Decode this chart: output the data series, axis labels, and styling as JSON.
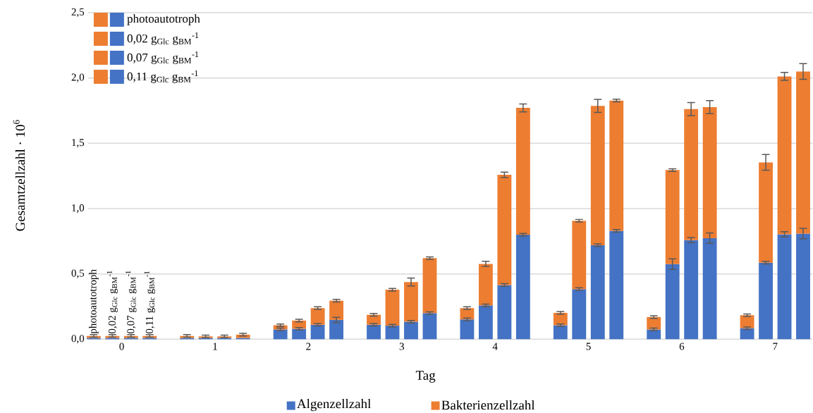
{
  "chart_data": {
    "type": "bar",
    "stacked": true,
    "xlabel": "Tag",
    "ylabel": "Gesamtzellzahl · 10$^{6}$",
    "x": [
      -0.3,
      -0.1,
      0.1,
      0.3,
      0.7,
      0.9,
      1.1,
      1.3,
      1.7,
      1.9,
      2.1,
      2.3,
      2.7,
      2.9,
      3.1,
      3.3,
      3.7,
      3.9,
      4.1,
      4.3,
      4.7,
      4.9,
      5.1,
      5.3,
      5.7,
      5.9,
      6.1,
      6.3,
      6.7,
      6.9,
      7.1,
      7.3
    ],
    "xlim": [
      -0.36,
      7.4
    ],
    "xticks": [
      0,
      1,
      2,
      3,
      4,
      5,
      6,
      7
    ],
    "ylim": [
      0,
      2.5
    ],
    "yticks": [
      {
        "value": 0,
        "label": "0,0"
      },
      {
        "value": 0.5,
        "label": "0,5"
      },
      {
        "value": 1,
        "label": "1,0"
      },
      {
        "value": 1.5,
        "label": "1,5"
      },
      {
        "value": 2,
        "label": "2,0"
      },
      {
        "value": 2.5,
        "label": "2,5"
      }
    ],
    "grid": "y",
    "legend": "bottom",
    "series": [
      {
        "name": "Algenzellzahl",
        "color": "#4472c4",
        "values": [
          0.01,
          0.01,
          0.01,
          0.01,
          0.01,
          0.01,
          0.01,
          0.01,
          0.075,
          0.08,
          0.111,
          0.148,
          0.111,
          0.104,
          0.134,
          0.2,
          0.152,
          0.259,
          0.415,
          0.8,
          0.107,
          0.384,
          0.72,
          0.83,
          0.075,
          0.575,
          0.759,
          0.774,
          0.084,
          0.586,
          0.803,
          0.809
        ],
        "errors": [
          null,
          null,
          null,
          null,
          null,
          null,
          null,
          null,
          0.01,
          0.01,
          0.01,
          0.02,
          0.01,
          0.01,
          0.01,
          0.01,
          0.01,
          0.01,
          0.01,
          0.01,
          0.01,
          0.01,
          0.01,
          0.01,
          0.01,
          0.04,
          0.02,
          0.04,
          0.01,
          0.01,
          0.02,
          0.04
        ]
      },
      {
        "name": "Bakterienzellzahl",
        "color": "#ed7d31",
        "values": [
          0.015,
          0.015,
          0.015,
          0.015,
          0.015,
          0.012,
          0.012,
          0.025,
          0.032,
          0.063,
          0.127,
          0.147,
          0.076,
          0.275,
          0.304,
          0.421,
          0.086,
          0.318,
          0.844,
          0.971,
          0.095,
          0.523,
          1.066,
          0.997,
          0.095,
          0.72,
          1.003,
          1.003,
          0.1,
          0.768,
          1.209,
          1.241
        ],
        "errors": [
          0.01,
          0.01,
          0.01,
          0.01,
          0.01,
          0.01,
          0.01,
          0.01,
          0.01,
          0.01,
          0.01,
          0.01,
          0.01,
          0.01,
          0.03,
          0.01,
          0.01,
          0.02,
          0.02,
          0.03,
          0.01,
          0.01,
          0.05,
          0.01,
          0.01,
          0.01,
          0.05,
          0.05,
          0.01,
          0.06,
          0.03,
          0.06
        ]
      }
    ],
    "annotations": [
      {
        "text": "photoautotroph",
        "x": -0.3,
        "y": 0.035
      },
      {
        "text": "0,02 g$_{Glc}$ g$_{BM}$$^{-1}$",
        "x": -0.1,
        "y": 0.035
      },
      {
        "text": "0,07 g$_{Glc}$ g$_{BM}$$^{-1}$",
        "x": 0.1,
        "y": 0.035
      },
      {
        "text": "0,11 g$_{Glc}$ g$_{BM}$$^{-1}$",
        "x": 0.3,
        "y": 0.035
      },
      "photoautotroph",
      "0,02 g$_{Glc}$ g$_{BM}$$^{-1}$",
      "0,07 g$_{Glc}$ g$_{BM}$$^{-1}$",
      "0,11 g$_{Glc}$ g$_{BM}$$^{-1}$"
    ]
  }
}
